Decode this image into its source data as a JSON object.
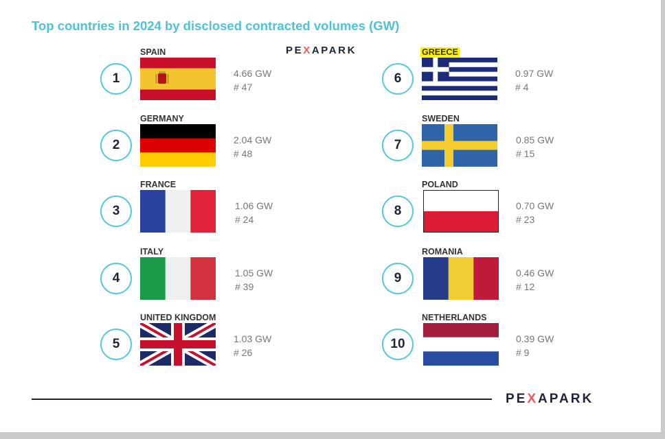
{
  "title": "Top countries in 2024 by disclosed contracted volumes (GW)",
  "brand": "PEXAPARK",
  "chart_data": {
    "type": "table",
    "title": "Top countries in 2024 by disclosed contracted volumes (GW)",
    "columns": [
      "rank",
      "country",
      "volume_gw",
      "deals"
    ],
    "rows": [
      {
        "rank": "1",
        "country": "SPAIN",
        "volume": "4.66 GW",
        "count": "# 47",
        "volume_gw": 4.66,
        "deals": 47,
        "flag": "spain-flag-icon",
        "colors": [
          "#c8102e",
          "#f4c430",
          "#c8102e"
        ]
      },
      {
        "rank": "2",
        "country": "GERMANY",
        "volume": "2.04 GW",
        "count": "# 48",
        "volume_gw": 2.04,
        "deals": 48,
        "flag": "germany-flag-icon",
        "colors": [
          "#000000",
          "#dd0000",
          "#ffce00"
        ]
      },
      {
        "rank": "3",
        "country": "FRANCE",
        "volume": "1.06 GW",
        "count": "# 24",
        "volume_gw": 1.06,
        "deals": 24,
        "flag": "france-flag-icon",
        "colors": [
          "#2a41a0",
          "#eef0f0",
          "#e02338"
        ]
      },
      {
        "rank": "4",
        "country": "ITALY",
        "volume": "1.05 GW",
        "count": "# 39",
        "volume_gw": 1.05,
        "deals": 39,
        "flag": "italy-flag-icon",
        "colors": [
          "#199a48",
          "#eef0f0",
          "#d2323e"
        ]
      },
      {
        "rank": "5",
        "country": "UNITED KINGDOM",
        "volume": "1.03 GW",
        "count": "# 26",
        "volume_gw": 1.03,
        "deals": 26,
        "flag": "uk-flag-icon",
        "colors": [
          "#1c2b68",
          "#ffffff",
          "#c8102e"
        ]
      },
      {
        "rank": "6",
        "country": "GREECE",
        "volume": "0.97 GW",
        "count": "# 4",
        "volume_gw": 0.97,
        "deals": 4,
        "flag": "greece-flag-icon",
        "colors": [
          "#1c2b7a",
          "#ffffff"
        ],
        "highlighted": true
      },
      {
        "rank": "7",
        "country": "SWEDEN",
        "volume": "0.85 GW",
        "count": "# 15",
        "volume_gw": 0.85,
        "deals": 15,
        "flag": "sweden-flag-icon",
        "colors": [
          "#2f64a8",
          "#f4cc2e"
        ]
      },
      {
        "rank": "8",
        "country": "POLAND",
        "volume": "0.70 GW",
        "count": "# 23",
        "volume_gw": 0.7,
        "deals": 23,
        "flag": "poland-flag-icon",
        "colors": [
          "#ffffff",
          "#dc1b35"
        ]
      },
      {
        "rank": "9",
        "country": "ROMANIA",
        "volume": "0.46 GW",
        "count": "# 12",
        "volume_gw": 0.46,
        "deals": 12,
        "flag": "romania-flag-icon",
        "colors": [
          "#263c8a",
          "#f0cd32",
          "#c0193a"
        ]
      },
      {
        "rank": "10",
        "country": "NETHERLANDS",
        "volume": "0.39 GW",
        "count": "# 9",
        "volume_gw": 0.39,
        "deals": 9,
        "flag": "netherlands-flag-icon",
        "colors": [
          "#a31d3c",
          "#ffffff",
          "#264da0"
        ]
      }
    ]
  }
}
